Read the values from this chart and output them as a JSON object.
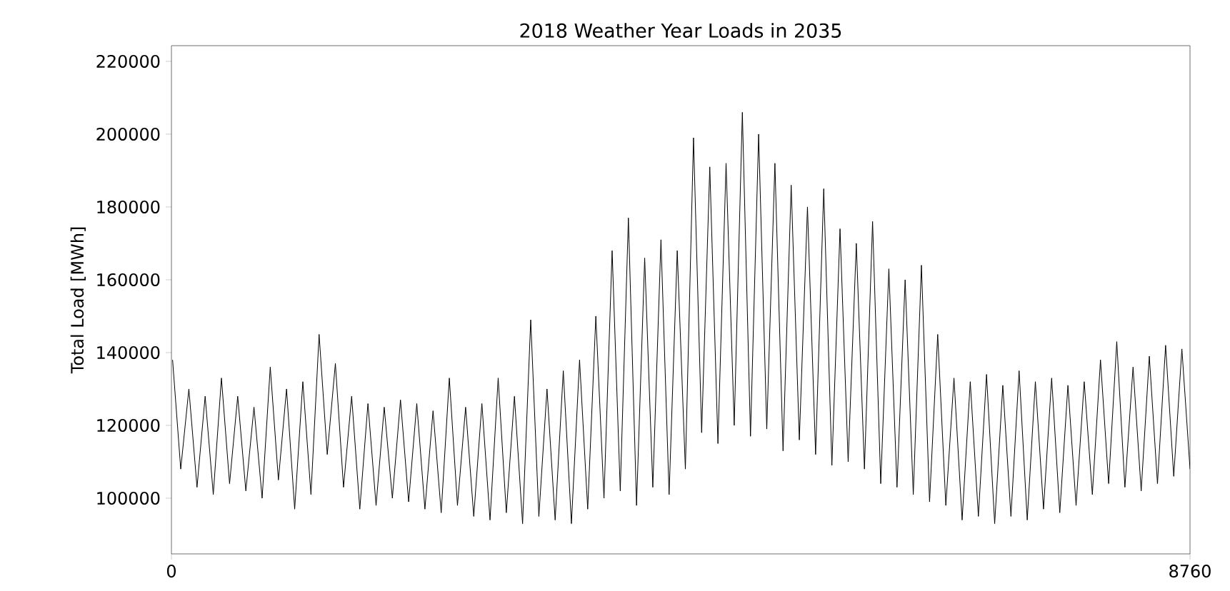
{
  "chart_data": {
    "type": "line",
    "title": "2018 Weather Year Loads in 2035",
    "ylabel": "Total Load [MWh]",
    "xlim": [
      0,
      8760
    ],
    "xticks": [
      0,
      8760
    ],
    "ylim": [
      84700,
      224300
    ],
    "yticks": [
      100000,
      120000,
      140000,
      160000,
      180000,
      200000,
      220000
    ],
    "grid": false,
    "marker": "none",
    "line_style": "solid",
    "series": [
      {
        "color": "#000000",
        "x": [
          10,
          80,
          150,
          220,
          290,
          360,
          430,
          500,
          570,
          640,
          710,
          780,
          850,
          920,
          990,
          1060,
          1130,
          1200,
          1270,
          1340,
          1410,
          1480,
          1550,
          1620,
          1690,
          1760,
          1830,
          1900,
          1970,
          2040,
          2110,
          2180,
          2250,
          2320,
          2390,
          2460,
          2530,
          2600,
          2670,
          2740,
          2810,
          2880,
          2950,
          3020,
          3090,
          3160,
          3230,
          3300,
          3370,
          3440,
          3510,
          3580,
          3650,
          3720,
          3790,
          3860,
          3930,
          4000,
          4070,
          4140,
          4210,
          4280,
          4350,
          4420,
          4490,
          4560,
          4630,
          4700,
          4770,
          4840,
          4910,
          4980,
          5050,
          5120,
          5190,
          5260,
          5330,
          5400,
          5470,
          5540,
          5610,
          5680,
          5750,
          5820,
          5890,
          5960,
          6030,
          6100,
          6170,
          6240,
          6310,
          6380,
          6450,
          6520,
          6590,
          6660,
          6730,
          6800,
          6870,
          6940,
          7010,
          7080,
          7150,
          7220,
          7290,
          7360,
          7430,
          7500,
          7570,
          7640,
          7710,
          7780,
          7850,
          7920,
          7990,
          8060,
          8130,
          8200,
          8270,
          8340,
          8410,
          8480,
          8550,
          8620,
          8690,
          8760
        ],
        "values": [
          138000,
          108000,
          130000,
          103000,
          128000,
          101000,
          133000,
          104000,
          128000,
          102000,
          125000,
          100000,
          136000,
          105000,
          130000,
          97000,
          132000,
          101000,
          145000,
          112000,
          137000,
          103000,
          128000,
          97000,
          126000,
          98000,
          125000,
          100000,
          127000,
          99000,
          126000,
          97000,
          124000,
          96000,
          133000,
          98000,
          125000,
          95000,
          126000,
          94000,
          133000,
          96000,
          128000,
          93000,
          149000,
          95000,
          130000,
          94000,
          135000,
          93000,
          138000,
          97000,
          150000,
          100000,
          168000,
          102000,
          177000,
          98000,
          166000,
          103000,
          171000,
          101000,
          168000,
          108000,
          199000,
          118000,
          191000,
          115000,
          192000,
          120000,
          206000,
          117000,
          200000,
          119000,
          192000,
          113000,
          186000,
          116000,
          180000,
          112000,
          185000,
          109000,
          174000,
          110000,
          170000,
          108000,
          176000,
          104000,
          163000,
          103000,
          160000,
          101000,
          164000,
          99000,
          145000,
          98000,
          133000,
          94000,
          132000,
          95000,
          134000,
          93000,
          131000,
          95000,
          135000,
          94000,
          132000,
          97000,
          133000,
          96000,
          131000,
          98000,
          132000,
          101000,
          138000,
          104000,
          143000,
          103000,
          136000,
          102000,
          139000,
          104000,
          142000,
          106000,
          141000,
          108000
        ]
      }
    ]
  }
}
